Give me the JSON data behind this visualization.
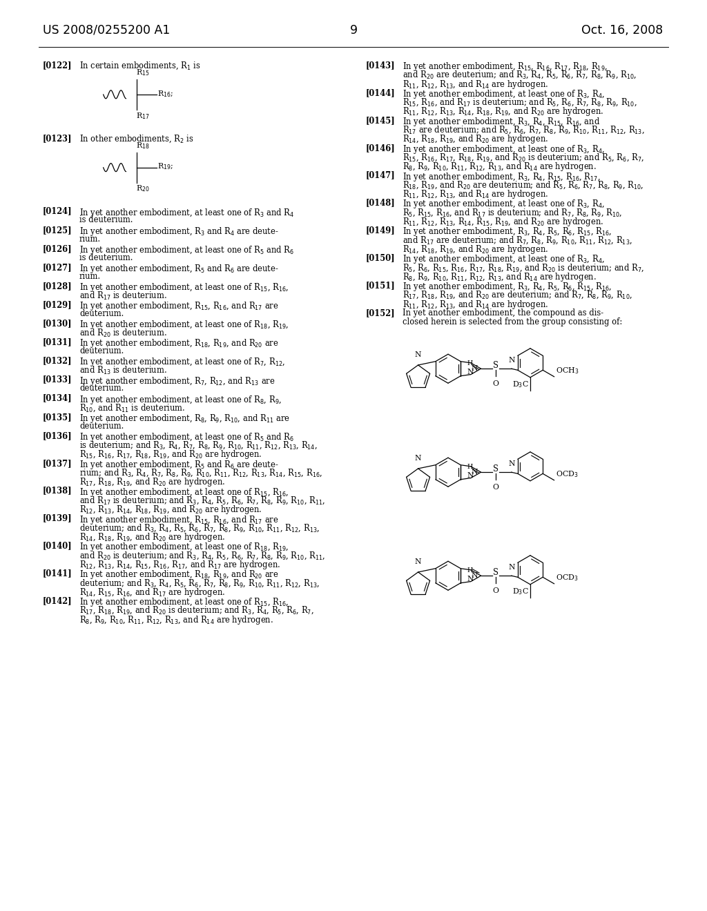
{
  "patent_number": "US 2008/0255200 A1",
  "date": "Oct. 16, 2008",
  "page_number": "9",
  "left_col_paras": [
    {
      "tag": "[0122]",
      "body": "In certain embodiments, R$_1$ is",
      "struct": null
    },
    {
      "tag": "[0123]",
      "body": "In other embodiments, R$_2$ is",
      "struct": null
    },
    {
      "tag": "[0124]",
      "body": "In yet another embodiment, at least one of R$_3$ and R$_4$\nis deuterium."
    },
    {
      "tag": "[0125]",
      "body": "In yet another embodiment, R$_3$ and R$_4$ are deute-\nrium."
    },
    {
      "tag": "[0126]",
      "body": "In yet another embodiment, at least one of R$_5$ and R$_6$\nis deuterium."
    },
    {
      "tag": "[0127]",
      "body": "In yet another embodiment, R$_5$ and R$_6$ are deute-\nrium."
    },
    {
      "tag": "[0128]",
      "body": "In yet another embodiment, at least one of R$_{15}$, R$_{16}$,\nand R$_{17}$ is deuterium."
    },
    {
      "tag": "[0129]",
      "body": "In yet another embodiment, R$_{15}$, R$_{16}$, and R$_{17}$ are\ndeuterium."
    },
    {
      "tag": "[0130]",
      "body": "In yet another embodiment, at least one of R$_{18}$, R$_{19}$,\nand R$_{20}$ is deuterium."
    },
    {
      "tag": "[0131]",
      "body": "In yet another embodiment, R$_{18}$, R$_{19}$, and R$_{20}$ are\ndeuterium."
    },
    {
      "tag": "[0132]",
      "body": "In yet another embodiment, at least one of R$_7$, R$_{12}$,\nand R$_{13}$ is deuterium."
    },
    {
      "tag": "[0133]",
      "body": "In yet another embodiment, R$_7$, R$_{12}$, and R$_{13}$ are\ndeuterium."
    },
    {
      "tag": "[0134]",
      "body": "In yet another embodiment, at least one of R$_8$, R$_9$,\nR$_{10}$, and R$_{11}$ is deuterium."
    },
    {
      "tag": "[0135]",
      "body": "In yet another embodiment, R$_8$, R$_9$, R$_{10}$, and R$_{11}$ are\ndeuterium."
    },
    {
      "tag": "[0136]",
      "body": "In yet another embodiment, at least one of R$_5$ and R$_6$\nis deuterium; and R$_3$, R$_4$, R$_7$, R$_8$, R$_9$, R$_{10}$, R$_{11}$, R$_{12}$, R$_{13}$, R$_{14}$,\nR$_{15}$, R$_{16}$, R$_{17}$, R$_{18}$, R$_{19}$, and R$_{20}$ are hydrogen."
    },
    {
      "tag": "[0137]",
      "body": "In yet another embodiment, R$_5$ and R$_6$ are deute-\nrium; and R$_3$, R$_4$, R$_7$, R$_8$, R$_9$, R$_{10}$, R$_{11}$, R$_{12}$, R$_{13}$, R$_{14}$, R$_{15}$, R$_{16}$,\nR$_{17}$, R$_{18}$, R$_{19}$, and R$_{20}$ are hydrogen."
    },
    {
      "tag": "[0138]",
      "body": "In yet another embodiment, at least one of R$_{15}$, R$_{16}$,\nand R$_{17}$ is deuterium; and R$_3$, R$_4$, R$_5$, R$_6$, R$_7$, R$_8$, R$_9$, R$_{10}$, R$_{11}$,\nR$_{12}$, R$_{13}$, R$_{14}$, R$_{18}$, R$_{19}$, and R$_{20}$ are hydrogen."
    },
    {
      "tag": "[0139]",
      "body": "In yet another embodiment, R$_{15}$, R$_{16}$, and R$_{17}$ are\ndeuterium; and R$_3$, R$_4$, R$_5$, R$_6$, R$_7$, R$_8$, R$_9$, R$_{10}$, R$_{11}$, R$_{12}$, R$_{13}$,\nR$_{14}$, R$_{18}$, R$_{19}$, and R$_{20}$ are hydrogen."
    },
    {
      "tag": "[0140]",
      "body": "In yet another embodiment, at least one of R$_{18}$, R$_{19}$,\nand R$_{20}$ is deuterium; and R$_3$, R$_4$, R$_5$, R$_6$, R$_7$, R$_8$, R$_9$, R$_{10}$, R$_{11}$,\nR$_{12}$, R$_{13}$, R$_{14}$, R$_{15}$, R$_{16}$, R$_{17}$, and R$_{17}$ are hydrogen."
    },
    {
      "tag": "[0141]",
      "body": "In yet another embodiment, R$_{18}$, R$_{19}$, and R$_{20}$ are\ndeuterium; and R$_3$, R$_4$, R$_5$, R$_6$, R$_7$, R$_8$, R$_9$, R$_{10}$, R$_{11}$, R$_{12}$, R$_{13}$,\nR$_{14}$, R$_{15}$, R$_{16}$, and R$_{17}$ are hydrogen."
    },
    {
      "tag": "[0142]",
      "body": "In yet another embodiment, at least one of R$_{15}$, R$_{16}$,\nR$_{17}$, R$_{18}$, R$_{19}$, and R$_{20}$ is deuterium; and R$_3$, R$_4$, R$_5$, R$_6$, R$_7$,\nR$_8$, R$_9$, R$_{10}$, R$_{11}$, R$_{12}$, R$_{13}$, and R$_{14}$ are hydrogen."
    }
  ],
  "right_col_paras": [
    {
      "tag": "[0143]",
      "body": "In yet another embodiment, R$_{15}$, R$_{16}$, R$_{17}$, R$_{18}$, R$_{19}$,\nand R$_{20}$ are deuterium; and R$_3$, R$_4$, R$_5$, R$_6$, R$_7$, R$_8$, R$_9$, R$_{10}$,\nR$_{11}$, R$_{12}$, R$_{13}$, and R$_{14}$ are hydrogen."
    },
    {
      "tag": "[0144]",
      "body": "In yet another embodiment, at least one of R$_3$, R$_4$,\nR$_{15}$, R$_{16}$, and R$_{17}$ is deuterium; and R$_5$, R$_6$, R$_7$, R$_8$, R$_9$, R$_{10}$,\nR$_{11}$, R$_{12}$, R$_{13}$, R$_{14}$, R$_{18}$, R$_{19}$, and R$_{20}$ are hydrogen."
    },
    {
      "tag": "[0145]",
      "body": "In yet another embodiment, R$_3$, R$_4$, R$_{15}$, R$_{16}$, and\nR$_{17}$ are deuterium; and R$_5$, R$_6$, R$_7$, R$_8$, R$_9$, R$_{10}$, R$_{11}$, R$_{12}$, R$_{13}$,\nR$_{14}$, R$_{18}$, R$_{19}$, and R$_{20}$ are hydrogen."
    },
    {
      "tag": "[0146]",
      "body": "In yet another embodiment, at least one of R$_3$, R$_4$,\nR$_{15}$, R$_{16}$, R$_{17}$, R$_{18}$, R$_{19}$, and R$_{20}$ is deuterium; and R$_5$, R$_6$, R$_7$,\nR$_8$, R$_9$, R$_{10}$, R$_{11}$, R$_{12}$, R$_{13}$, and R$_{14}$ are hydrogen."
    },
    {
      "tag": "[0147]",
      "body": "In yet another embodiment, R$_3$, R$_4$, R$_{15}$, R$_{16}$, R$_{17}$,\nR$_{18}$, R$_{19}$, and R$_{20}$ are deuterium; and R$_5$, R$_6$, R$_7$, R$_8$, R$_9$, R$_{10}$,\nR$_{11}$, R$_{12}$, R$_{13}$, and R$_{14}$ are hydrogen."
    },
    {
      "tag": "[0148]",
      "body": "In yet another embodiment, at least one of R$_3$, R$_4$,\nR$_5$, R$_{15}$, R$_{16}$, and R$_{17}$ is deuterium; and R$_7$, R$_8$, R$_9$, R$_{10}$,\nR$_{11}$, R$_{12}$, R$_{13}$, R$_{14}$, R$_{15}$, R$_{19}$, and R$_{20}$ are hydrogen."
    },
    {
      "tag": "[0149]",
      "body": "In yet another embodiment, R$_3$, R$_4$, R$_5$, R$_6$, R$_{15}$, R$_{16}$,\nand R$_{17}$ are deuterium; and R$_7$, R$_8$, R$_9$, R$_{10}$, R$_{11}$, R$_{12}$, R$_{13}$,\nR$_{14}$, R$_{18}$, R$_{19}$, and R$_{20}$ are hydrogen."
    },
    {
      "tag": "[0150]",
      "body": "In yet another embodiment, at least one of R$_3$, R$_4$,\nR$_5$, R$_6$, R$_{15}$, R$_{16}$, R$_{17}$, R$_{18}$, R$_{19}$, and R$_{20}$ is deuterium; and R$_7$,\nR$_8$, R$_9$, R$_{10}$, R$_{11}$, R$_{12}$, R$_{13}$, and R$_{14}$ are hydrogen."
    },
    {
      "tag": "[0151]",
      "body": "In yet another embodiment, R$_3$, R$_4$, R$_5$, R$_6$, R$_{15}$, R$_{16}$,\nR$_{17}$, R$_{18}$, R$_{19}$, and R$_{20}$ are deuterium; and R$_7$, R$_8$, R$_9$, R$_{10}$,\nR$_{11}$, R$_{12}$, R$_{13}$, and R$_{14}$ are hydrogen."
    },
    {
      "tag": "[0152]",
      "body": "In yet another embodiment, the compound as dis-\nclosed herein is selected from the group consisting of:"
    }
  ],
  "struct1_labels": [
    "R$_{15}$",
    "R$_{16}$;",
    "R$_{17}$"
  ],
  "struct2_labels": [
    "R$_{18}$",
    "R$_{19}$;",
    "R$_{20}$"
  ],
  "chem_struct_labels": [
    {
      "left": "D$_3$C",
      "right": "OCH$_3$"
    },
    {
      "left": "",
      "right": "OCD$_3$"
    },
    {
      "left": "D$_3$C",
      "right": "OCD$_3$"
    }
  ]
}
